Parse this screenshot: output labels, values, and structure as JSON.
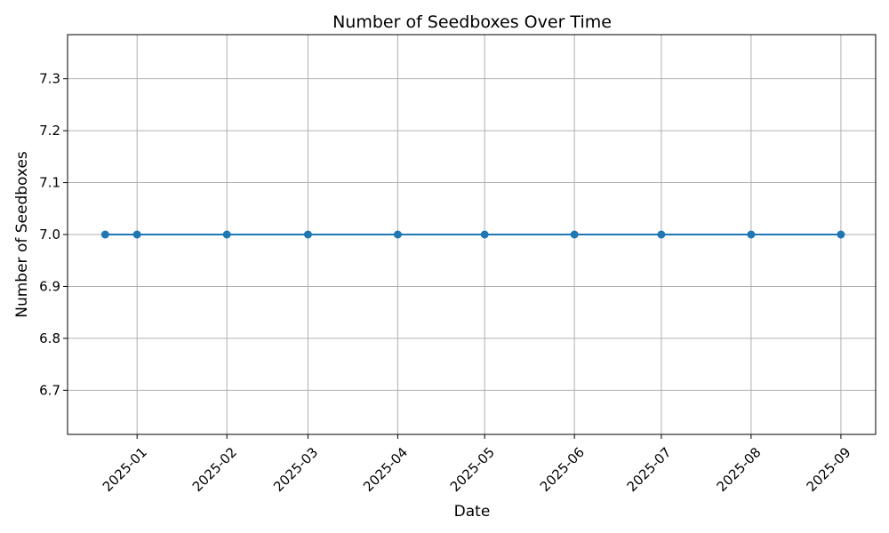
{
  "chart_data": {
    "type": "line",
    "title": "Number of Seedboxes Over Time",
    "xlabel": "Date",
    "ylabel": "Number of Seedboxes",
    "x_tick_labels": [
      "2025-01",
      "2025-02",
      "2025-03",
      "2025-04",
      "2025-05",
      "2025-06",
      "2025-07",
      "2025-08",
      "2025-09"
    ],
    "y_tick_labels": [
      "6.7",
      "6.8",
      "6.9",
      "7.0",
      "7.1",
      "7.2",
      "7.3"
    ],
    "ylim": [
      6.615,
      7.385
    ],
    "xlim": [
      "2024-12-08",
      "2025-09-13"
    ],
    "grid": true,
    "series": [
      {
        "color": "#1f77b4",
        "marker": "circle",
        "points": [
          {
            "x": "2024-12-21",
            "y": 7
          },
          {
            "x": "2025-01-01",
            "y": 7
          },
          {
            "x": "2025-02-01",
            "y": 7
          },
          {
            "x": "2025-03-01",
            "y": 7
          },
          {
            "x": "2025-04-01",
            "y": 7
          },
          {
            "x": "2025-05-01",
            "y": 7
          },
          {
            "x": "2025-06-01",
            "y": 7
          },
          {
            "x": "2025-07-01",
            "y": 7
          },
          {
            "x": "2025-08-01",
            "y": 7
          },
          {
            "x": "2025-09-01",
            "y": 7
          }
        ]
      }
    ]
  }
}
